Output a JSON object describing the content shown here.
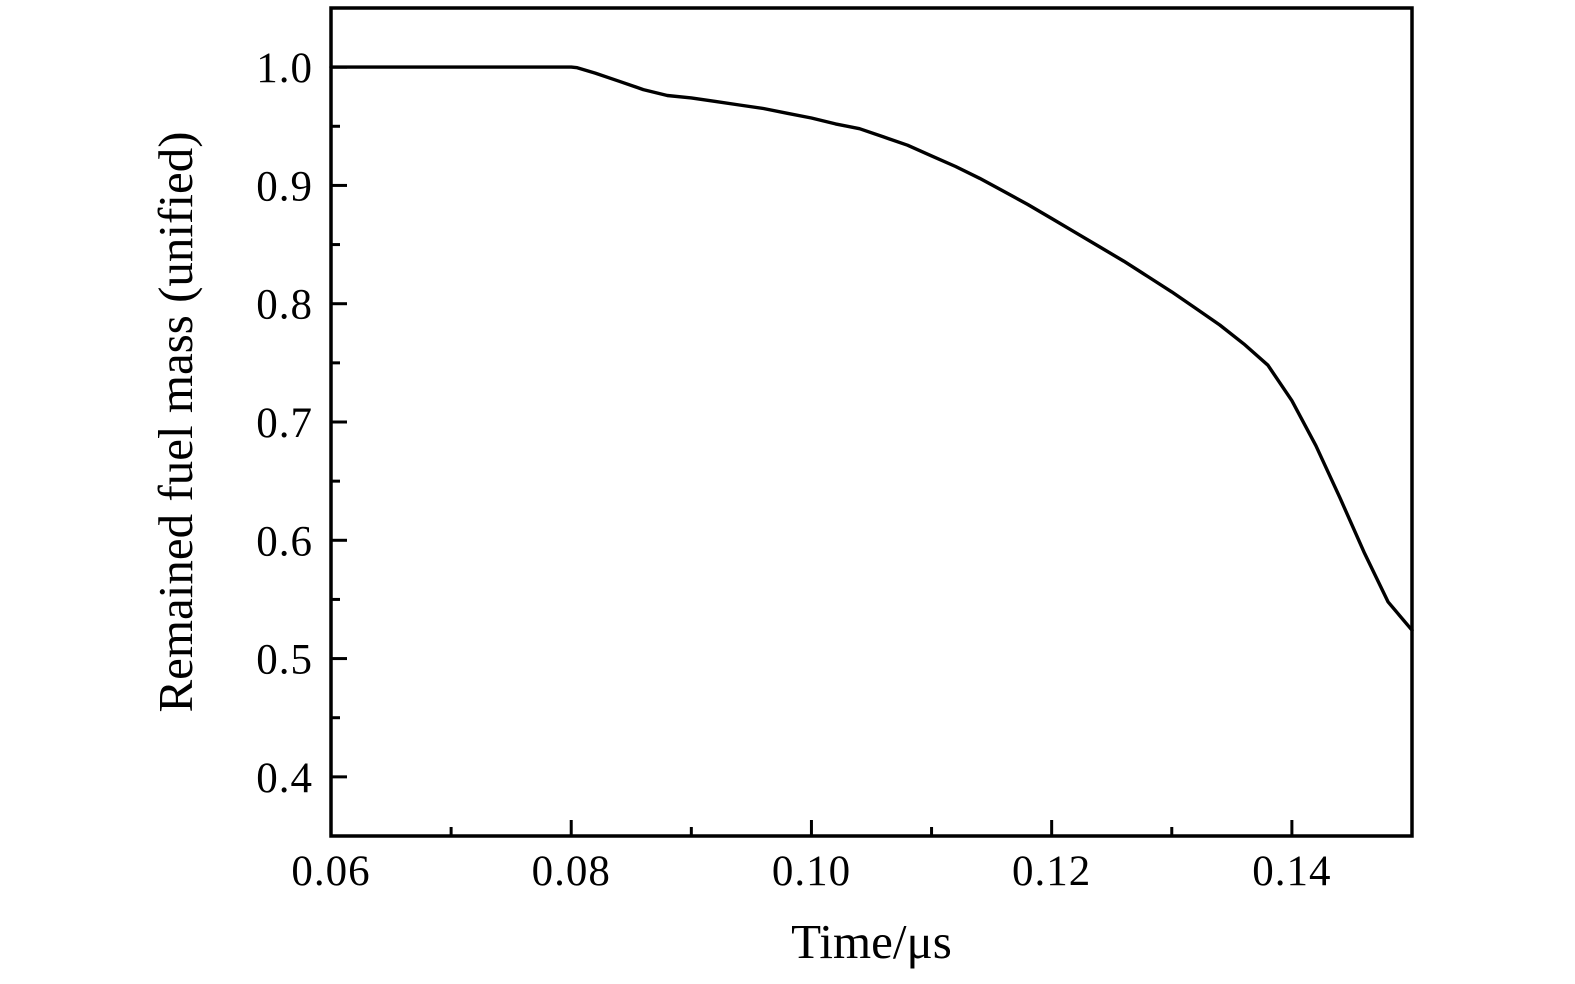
{
  "chart_data": {
    "type": "line",
    "title": "",
    "xlabel": "Time/μs",
    "ylabel": "Remained fuel mass (unified)",
    "xlim": [
      0.06,
      0.15
    ],
    "ylim": [
      0.35,
      1.05
    ],
    "grid": false,
    "legend": null,
    "background_color": "#ffffff",
    "line_color": "#000000",
    "axis_color": "#000000",
    "x_major_ticks": [
      0.06,
      0.08,
      0.1,
      0.12,
      0.14
    ],
    "x_minor_ticks": [
      0.07,
      0.09,
      0.11,
      0.13
    ],
    "x_tick_labels": [
      "0.06",
      "0.08",
      "0.10",
      "0.12",
      "0.14"
    ],
    "y_major_ticks": [
      0.4,
      0.5,
      0.6,
      0.7,
      0.8,
      0.9,
      1.0
    ],
    "y_minor_ticks": [
      0.45,
      0.55,
      0.65,
      0.75,
      0.85,
      0.95
    ],
    "y_tick_labels": [
      "0.4",
      "0.5",
      "0.6",
      "0.7",
      "0.8",
      "0.9",
      "1.0"
    ],
    "series": [
      {
        "name": "Remained fuel mass",
        "points": [
          [
            0.06,
            1.0
          ],
          [
            0.065,
            1.0
          ],
          [
            0.07,
            1.0
          ],
          [
            0.075,
            1.0
          ],
          [
            0.08,
            1.0
          ],
          [
            0.0805,
            0.9995
          ],
          [
            0.082,
            0.995
          ],
          [
            0.084,
            0.988
          ],
          [
            0.086,
            0.981
          ],
          [
            0.088,
            0.976
          ],
          [
            0.09,
            0.974
          ],
          [
            0.092,
            0.971
          ],
          [
            0.094,
            0.968
          ],
          [
            0.096,
            0.965
          ],
          [
            0.098,
            0.961
          ],
          [
            0.1,
            0.957
          ],
          [
            0.102,
            0.952
          ],
          [
            0.104,
            0.948
          ],
          [
            0.106,
            0.941
          ],
          [
            0.108,
            0.934
          ],
          [
            0.11,
            0.925
          ],
          [
            0.112,
            0.916
          ],
          [
            0.114,
            0.906
          ],
          [
            0.116,
            0.895
          ],
          [
            0.118,
            0.884
          ],
          [
            0.12,
            0.872
          ],
          [
            0.122,
            0.86
          ],
          [
            0.124,
            0.848
          ],
          [
            0.126,
            0.836
          ],
          [
            0.128,
            0.823
          ],
          [
            0.13,
            0.81
          ],
          [
            0.132,
            0.796
          ],
          [
            0.134,
            0.782
          ],
          [
            0.136,
            0.766
          ],
          [
            0.138,
            0.748
          ],
          [
            0.14,
            0.718
          ],
          [
            0.142,
            0.68
          ],
          [
            0.144,
            0.636
          ],
          [
            0.146,
            0.59
          ],
          [
            0.148,
            0.548
          ],
          [
            0.15,
            0.524
          ]
        ]
      }
    ]
  }
}
